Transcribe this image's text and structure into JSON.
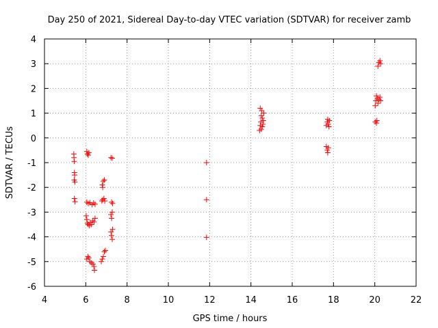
{
  "chart_data": {
    "type": "scatter",
    "title": "Day 250 of 2021, Sidereal Day-to-day VTEC variation (SDTVAR) for receiver zamb",
    "xlabel": "GPS time / hours",
    "ylabel": "SDTVAR / TECUs",
    "xlim": [
      4,
      22
    ],
    "ylim": [
      -6,
      4
    ],
    "xticks": [
      4,
      6,
      8,
      10,
      12,
      14,
      16,
      18,
      20,
      22
    ],
    "yticks": [
      -6,
      -5,
      -4,
      -3,
      -2,
      -1,
      0,
      1,
      2,
      3,
      4
    ],
    "grid": true,
    "marker": "+",
    "color": "#ff0000",
    "series": [
      {
        "name": "zamb",
        "points": [
          [
            5.42,
            -0.65
          ],
          [
            5.43,
            -0.8
          ],
          [
            5.44,
            -0.95
          ],
          [
            5.45,
            -1.4
          ],
          [
            5.46,
            -1.5
          ],
          [
            5.44,
            -1.7
          ],
          [
            5.47,
            -1.78
          ],
          [
            5.45,
            -2.45
          ],
          [
            5.48,
            -2.58
          ],
          [
            6.05,
            -0.55
          ],
          [
            6.08,
            -0.65
          ],
          [
            6.12,
            -0.7
          ],
          [
            6.15,
            -0.6
          ],
          [
            6.05,
            -2.6
          ],
          [
            6.12,
            -2.65
          ],
          [
            6.2,
            -2.62
          ],
          [
            6.3,
            -2.7
          ],
          [
            6.38,
            -2.63
          ],
          [
            6.45,
            -2.68
          ],
          [
            6.02,
            -3.15
          ],
          [
            6.05,
            -3.3
          ],
          [
            6.08,
            -3.45
          ],
          [
            6.12,
            -3.5
          ],
          [
            6.18,
            -3.55
          ],
          [
            6.22,
            -3.42
          ],
          [
            6.28,
            -3.5
          ],
          [
            6.33,
            -3.35
          ],
          [
            6.4,
            -3.4
          ],
          [
            6.45,
            -3.25
          ],
          [
            6.05,
            -4.9
          ],
          [
            6.1,
            -4.8
          ],
          [
            6.15,
            -4.85
          ],
          [
            6.2,
            -5.0
          ],
          [
            6.28,
            -5.05
          ],
          [
            6.35,
            -5.1
          ],
          [
            6.4,
            -5.2
          ],
          [
            6.42,
            -5.35
          ],
          [
            6.78,
            -2.55
          ],
          [
            6.82,
            -2.5
          ],
          [
            6.88,
            -2.45
          ],
          [
            6.92,
            -2.55
          ],
          [
            6.8,
            -1.9
          ],
          [
            6.82,
            -2.0
          ],
          [
            6.85,
            -1.75
          ],
          [
            6.9,
            -1.7
          ],
          [
            6.75,
            -5.0
          ],
          [
            6.8,
            -4.9
          ],
          [
            6.85,
            -4.8
          ],
          [
            6.9,
            -4.6
          ],
          [
            6.95,
            -4.55
          ],
          [
            7.22,
            -0.8
          ],
          [
            7.28,
            -0.82
          ],
          [
            7.25,
            -2.6
          ],
          [
            7.3,
            -2.65
          ],
          [
            7.22,
            -3.1
          ],
          [
            7.25,
            -3.25
          ],
          [
            7.28,
            -3.0
          ],
          [
            7.22,
            -3.8
          ],
          [
            7.25,
            -3.95
          ],
          [
            7.28,
            -4.1
          ],
          [
            7.3,
            -3.7
          ],
          [
            11.85,
            -1.0
          ],
          [
            11.85,
            -2.5
          ],
          [
            11.85,
            -4.02
          ],
          [
            14.42,
            0.3
          ],
          [
            14.45,
            0.5
          ],
          [
            14.48,
            0.65
          ],
          [
            14.5,
            0.9
          ],
          [
            14.52,
            1.1
          ],
          [
            14.55,
            0.8
          ],
          [
            14.58,
            0.55
          ],
          [
            14.6,
            0.7
          ],
          [
            14.62,
            1.0
          ],
          [
            14.55,
            0.45
          ],
          [
            14.5,
            0.35
          ],
          [
            14.45,
            1.2
          ],
          [
            17.65,
            0.5
          ],
          [
            17.7,
            0.65
          ],
          [
            17.72,
            0.75
          ],
          [
            17.75,
            0.55
          ],
          [
            17.78,
            0.45
          ],
          [
            17.8,
            0.7
          ],
          [
            17.65,
            -0.35
          ],
          [
            17.7,
            -0.5
          ],
          [
            17.72,
            -0.6
          ],
          [
            17.75,
            -0.4
          ],
          [
            20.02,
            0.65
          ],
          [
            20.08,
            0.6
          ],
          [
            20.1,
            0.7
          ],
          [
            20.02,
            1.3
          ],
          [
            20.05,
            1.5
          ],
          [
            20.08,
            1.7
          ],
          [
            20.12,
            1.6
          ],
          [
            20.15,
            1.4
          ],
          [
            20.2,
            1.55
          ],
          [
            20.25,
            1.65
          ],
          [
            20.28,
            1.5
          ],
          [
            20.15,
            2.9
          ],
          [
            20.2,
            3.05
          ],
          [
            20.25,
            3.12
          ],
          [
            20.28,
            3.0
          ]
        ]
      }
    ]
  }
}
